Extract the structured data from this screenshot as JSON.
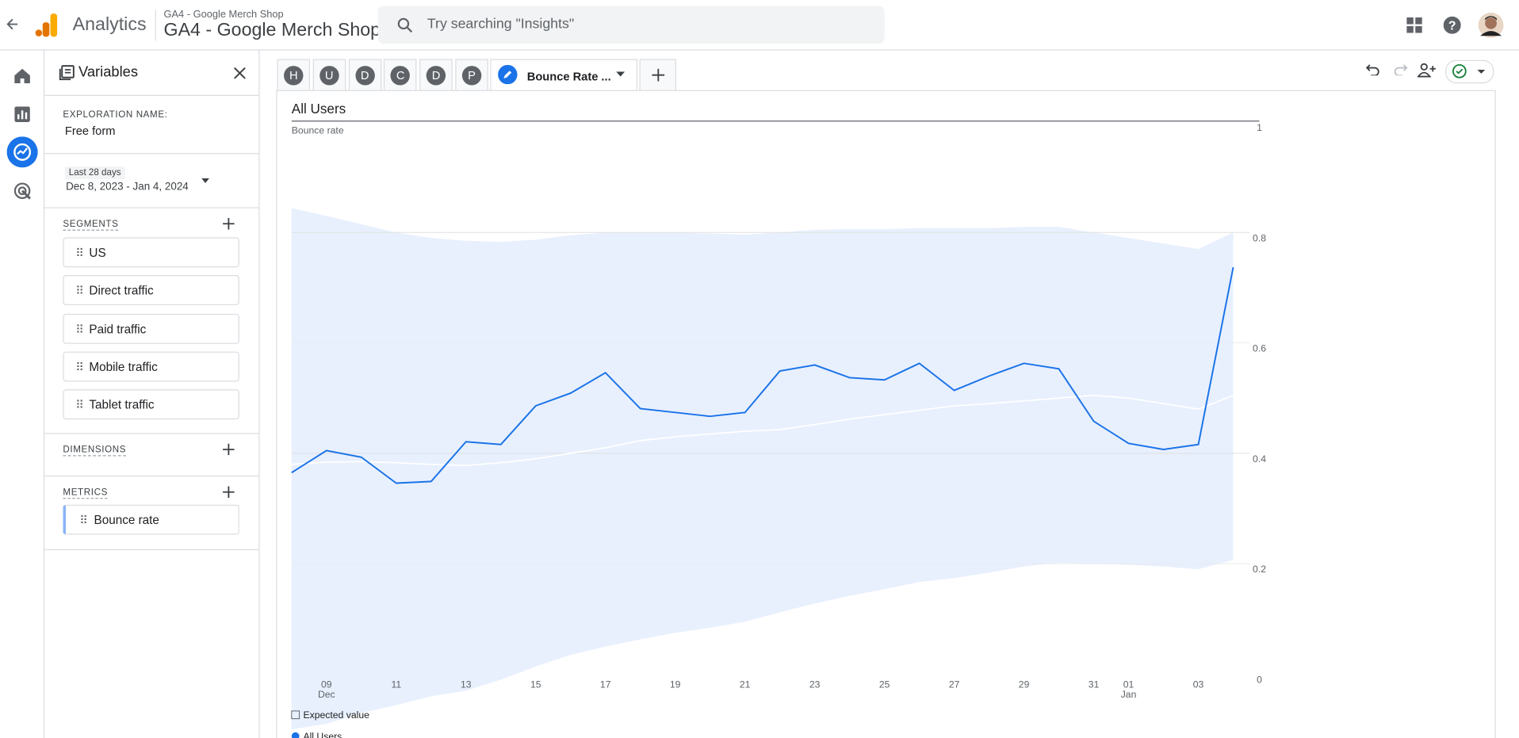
{
  "header": {
    "product": "Analytics",
    "account": "GA4 - Google Merch Shop",
    "property": "GA4 - Google Merch Shop",
    "search_placeholder": "Try searching \"Insights\""
  },
  "variables": {
    "title": "Variables",
    "exploration_name_label": "EXPLORATION NAME:",
    "exploration_name": "Free form",
    "date_range_label": "Last 28 days",
    "date_range": "Dec 8, 2023 - Jan 4, 2024",
    "segments_label": "SEGMENTS",
    "segments": [
      "US",
      "Direct traffic",
      "Paid traffic",
      "Mobile traffic",
      "Tablet traffic"
    ],
    "dimensions_label": "DIMENSIONS",
    "metrics_label": "METRICS",
    "metrics": [
      "Bounce rate"
    ]
  },
  "tabs": {
    "letters": [
      "H",
      "U",
      "D",
      "C",
      "D",
      "P"
    ],
    "active": "Bounce Rate ..."
  },
  "chart_data": {
    "type": "line",
    "title": "All Users",
    "y_label": "Bounce rate",
    "categories": [
      null,
      "09",
      null,
      "11",
      null,
      "13",
      null,
      "15",
      null,
      "17",
      null,
      "19",
      null,
      "21",
      null,
      "23",
      null,
      "25",
      null,
      "27",
      null,
      "29",
      null,
      "31",
      "01",
      null,
      "03",
      null
    ],
    "category_months": [
      null,
      "Dec",
      null,
      null,
      null,
      null,
      null,
      null,
      null,
      null,
      null,
      null,
      null,
      null,
      null,
      null,
      null,
      null,
      null,
      null,
      null,
      null,
      null,
      null,
      "Jan",
      null,
      null,
      null
    ],
    "series": [
      {
        "name": "Expected value",
        "color": "#ffffff",
        "values": [
          0.38,
          0.384,
          0.385,
          0.383,
          0.38,
          0.378,
          0.383,
          0.39,
          0.4,
          0.41,
          0.423,
          0.43,
          0.435,
          0.44,
          0.443,
          0.452,
          0.462,
          0.47,
          0.478,
          0.486,
          0.49,
          0.495,
          0.5,
          0.505,
          0.5,
          0.49,
          0.48,
          0.505
        ]
      },
      {
        "name": "All Users",
        "color": "#1a73e8",
        "values": [
          0.365,
          0.405,
          0.393,
          0.346,
          0.349,
          0.421,
          0.416,
          0.486,
          0.509,
          0.546,
          0.481,
          0.474,
          0.467,
          0.474,
          0.549,
          0.56,
          0.537,
          0.533,
          0.563,
          0.514,
          0.54,
          0.563,
          0.553,
          0.458,
          0.418,
          0.407,
          0.416,
          0.737
        ]
      }
    ],
    "band_upper": [
      0.844,
      0.83,
      0.815,
      0.8,
      0.79,
      0.785,
      0.783,
      0.787,
      0.795,
      0.8,
      0.8,
      0.8,
      0.798,
      0.796,
      0.8,
      0.805,
      0.806,
      0.806,
      0.808,
      0.808,
      0.808,
      0.81,
      0.81,
      0.8,
      0.79,
      0.78,
      0.77,
      0.8
    ],
    "band_lower": [
      -0.1,
      -0.09,
      -0.07,
      -0.056,
      -0.04,
      -0.03,
      -0.01,
      0.014,
      0.035,
      0.05,
      0.063,
      0.075,
      0.084,
      0.095,
      0.112,
      0.128,
      0.142,
      0.154,
      0.167,
      0.174,
      0.184,
      0.195,
      0.202,
      0.2,
      0.198,
      0.195,
      0.19,
      0.207
    ],
    "band_color": "#e8f0fe",
    "ylim": [
      0,
      1
    ],
    "yticks": [
      0,
      0.2,
      0.4,
      0.6,
      0.8,
      1
    ],
    "grid": true
  }
}
